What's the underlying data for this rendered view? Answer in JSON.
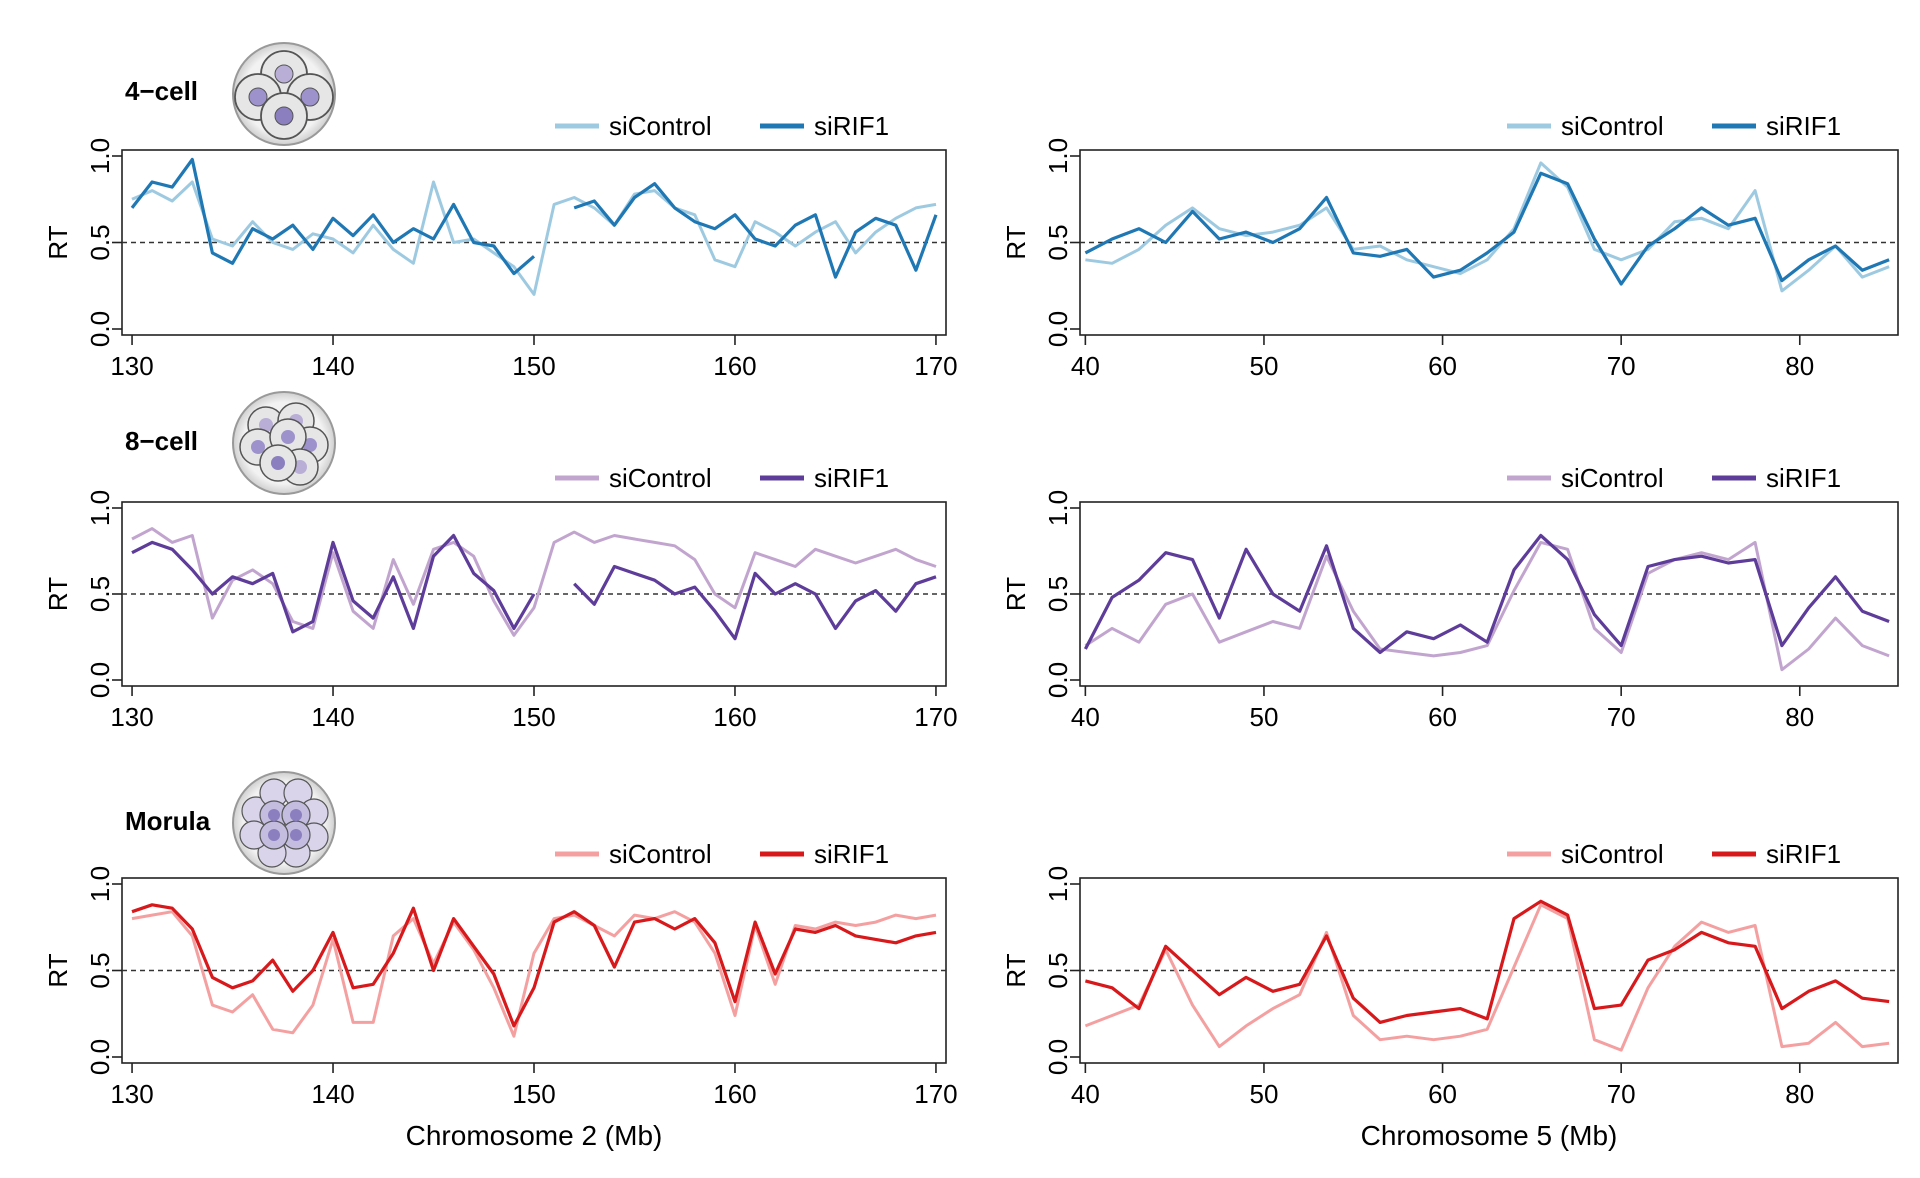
{
  "colors": {
    "4-cell": {
      "siControl": "#9ecae1",
      "siRIF1": "#1f78b4"
    },
    "8-cell": {
      "siControl": "#c2a5cf",
      "siRIF1": "#5e3c99"
    },
    "Morula": {
      "siControl": "#f4a0a0",
      "siRIF1": "#d7191c"
    }
  },
  "chart_data": [
    {
      "type": "line",
      "stage": "4-cell",
      "ylabel": "RT",
      "xlabel": "",
      "xlim": [
        129.5,
        170.5
      ],
      "ylim": [
        0,
        1
      ],
      "xticks": [
        130,
        140,
        150,
        160,
        170
      ],
      "yticks": [
        0.0,
        0.5,
        1.0
      ],
      "legend": "top-right",
      "reference_line": 0.5,
      "x": [
        130,
        131,
        132,
        133,
        134,
        135,
        136,
        137,
        138,
        139,
        140,
        141,
        142,
        143,
        144,
        145,
        146,
        147,
        148,
        149,
        150,
        151,
        152,
        153,
        154,
        155,
        156,
        157,
        158,
        159,
        160,
        161,
        162,
        163,
        164,
        165,
        166,
        167,
        168,
        169,
        170
      ],
      "series": [
        {
          "name": "siControl",
          "values": [
            0.75,
            0.8,
            0.74,
            0.85,
            0.52,
            0.48,
            0.62,
            0.5,
            0.46,
            0.55,
            0.52,
            0.44,
            0.6,
            0.46,
            0.38,
            0.85,
            0.5,
            0.52,
            0.44,
            0.36,
            0.2,
            0.72,
            0.76,
            0.7,
            0.6,
            0.78,
            0.8,
            0.7,
            0.66,
            0.4,
            0.36,
            0.62,
            0.56,
            0.48,
            0.56,
            0.62,
            0.44,
            0.56,
            0.64,
            0.7,
            0.72
          ]
        },
        {
          "name": "siRIF1",
          "values": [
            0.7,
            0.85,
            0.82,
            0.98,
            0.44,
            0.38,
            0.58,
            0.52,
            0.6,
            0.46,
            0.64,
            0.54,
            0.66,
            0.5,
            0.58,
            0.52,
            0.72,
            0.5,
            0.48,
            0.32,
            0.42,
            null,
            0.7,
            0.74,
            0.6,
            0.76,
            0.84,
            0.7,
            0.62,
            0.58,
            0.66,
            0.52,
            0.48,
            0.6,
            0.66,
            0.3,
            0.56,
            0.64,
            0.6,
            0.34,
            0.66
          ]
        }
      ]
    },
    {
      "type": "line",
      "stage": "4-cell",
      "ylabel": "RT",
      "xlabel": "",
      "xlim": [
        39.7,
        85.5
      ],
      "ylim": [
        0,
        1
      ],
      "xticks": [
        40,
        50,
        60,
        70,
        80
      ],
      "yticks": [
        0.0,
        0.5,
        1.0
      ],
      "legend": "top-right",
      "reference_line": 0.5,
      "x": [
        40,
        41.5,
        43,
        44.5,
        46,
        47.5,
        49,
        50.5,
        52,
        53.5,
        55,
        56.5,
        58,
        59.5,
        61,
        62.5,
        64,
        65.5,
        67,
        68.5,
        70,
        71.5,
        73,
        74.5,
        76,
        77.5,
        79,
        80.5,
        82,
        83.5,
        85
      ],
      "series": [
        {
          "name": "siControl",
          "values": [
            0.4,
            0.38,
            0.46,
            0.6,
            0.7,
            0.58,
            0.54,
            0.56,
            0.6,
            0.7,
            0.46,
            0.48,
            0.4,
            0.36,
            0.32,
            0.4,
            0.58,
            0.96,
            0.82,
            0.46,
            0.4,
            0.46,
            0.62,
            0.64,
            0.58,
            0.8,
            0.22,
            0.34,
            0.48,
            0.3,
            0.36
          ]
        },
        {
          "name": "siRIF1",
          "values": [
            0.44,
            0.52,
            0.58,
            0.5,
            0.68,
            0.52,
            0.56,
            0.5,
            0.58,
            0.76,
            0.44,
            0.42,
            0.46,
            0.3,
            0.34,
            0.44,
            0.56,
            0.9,
            0.84,
            0.52,
            0.26,
            0.48,
            0.58,
            0.7,
            0.6,
            0.64,
            0.28,
            0.4,
            0.48,
            0.34,
            0.4
          ]
        }
      ]
    },
    {
      "type": "line",
      "stage": "8-cell",
      "ylabel": "RT",
      "xlabel": "",
      "xlim": [
        129.5,
        170.5
      ],
      "ylim": [
        0,
        1
      ],
      "xticks": [
        130,
        140,
        150,
        160,
        170
      ],
      "yticks": [
        0.0,
        0.5,
        1.0
      ],
      "legend": "top-right",
      "reference_line": 0.5,
      "x": [
        130,
        131,
        132,
        133,
        134,
        135,
        136,
        137,
        138,
        139,
        140,
        141,
        142,
        143,
        144,
        145,
        146,
        147,
        148,
        149,
        150,
        151,
        152,
        153,
        154,
        155,
        156,
        157,
        158,
        159,
        160,
        161,
        162,
        163,
        164,
        165,
        166,
        167,
        168,
        169,
        170
      ],
      "series": [
        {
          "name": "siControl",
          "values": [
            0.82,
            0.88,
            0.8,
            0.84,
            0.36,
            0.58,
            0.64,
            0.56,
            0.34,
            0.3,
            0.74,
            0.4,
            0.3,
            0.7,
            0.44,
            0.76,
            0.8,
            0.72,
            0.46,
            0.26,
            0.42,
            0.8,
            0.86,
            0.8,
            0.84,
            0.82,
            0.8,
            0.78,
            0.7,
            0.5,
            0.42,
            0.74,
            0.7,
            0.66,
            0.76,
            0.72,
            0.68,
            0.72,
            0.76,
            0.7,
            0.66
          ]
        },
        {
          "name": "siRIF1",
          "values": [
            0.74,
            0.8,
            0.76,
            0.64,
            0.5,
            0.6,
            0.56,
            0.62,
            0.28,
            0.34,
            0.8,
            0.46,
            0.36,
            0.6,
            0.3,
            0.72,
            0.84,
            0.62,
            0.52,
            0.3,
            0.5,
            null,
            0.56,
            0.44,
            0.66,
            0.62,
            0.58,
            0.5,
            0.54,
            0.4,
            0.24,
            0.62,
            0.5,
            0.56,
            0.5,
            0.3,
            0.46,
            0.52,
            0.4,
            0.56,
            0.6
          ]
        }
      ]
    },
    {
      "type": "line",
      "stage": "8-cell",
      "ylabel": "RT",
      "xlabel": "",
      "xlim": [
        39.7,
        85.5
      ],
      "ylim": [
        0,
        1
      ],
      "xticks": [
        40,
        50,
        60,
        70,
        80
      ],
      "yticks": [
        0.0,
        0.5,
        1.0
      ],
      "legend": "top-right",
      "reference_line": 0.5,
      "x": [
        40,
        41.5,
        43,
        44.5,
        46,
        47.5,
        49,
        50.5,
        52,
        53.5,
        55,
        56.5,
        58,
        59.5,
        61,
        62.5,
        64,
        65.5,
        67,
        68.5,
        70,
        71.5,
        73,
        74.5,
        76,
        77.5,
        79,
        80.5,
        82,
        83.5,
        85
      ],
      "series": [
        {
          "name": "siControl",
          "values": [
            0.2,
            0.3,
            0.22,
            0.44,
            0.5,
            0.22,
            0.28,
            0.34,
            0.3,
            0.72,
            0.4,
            0.18,
            0.16,
            0.14,
            0.16,
            0.2,
            0.52,
            0.8,
            0.76,
            0.3,
            0.16,
            0.62,
            0.7,
            0.74,
            0.7,
            0.8,
            0.06,
            0.18,
            0.36,
            0.2,
            0.14
          ]
        },
        {
          "name": "siRIF1",
          "values": [
            0.18,
            0.48,
            0.58,
            0.74,
            0.7,
            0.36,
            0.76,
            0.5,
            0.4,
            0.78,
            0.3,
            0.16,
            0.28,
            0.24,
            0.32,
            0.22,
            0.64,
            0.84,
            0.7,
            0.38,
            0.2,
            0.66,
            0.7,
            0.72,
            0.68,
            0.7,
            0.2,
            0.42,
            0.6,
            0.4,
            0.34
          ]
        }
      ]
    },
    {
      "type": "line",
      "stage": "Morula",
      "ylabel": "RT",
      "xlabel": "Chromosome 2 (Mb)",
      "xlim": [
        129.5,
        170.5
      ],
      "ylim": [
        0,
        1
      ],
      "xticks": [
        130,
        140,
        150,
        160,
        170
      ],
      "yticks": [
        0.0,
        0.5,
        1.0
      ],
      "legend": "top-right",
      "reference_line": 0.5,
      "x": [
        130,
        131,
        132,
        133,
        134,
        135,
        136,
        137,
        138,
        139,
        140,
        141,
        142,
        143,
        144,
        145,
        146,
        147,
        148,
        149,
        150,
        151,
        152,
        153,
        154,
        155,
        156,
        157,
        158,
        159,
        160,
        161,
        162,
        163,
        164,
        165,
        166,
        167,
        168,
        169,
        170
      ],
      "series": [
        {
          "name": "siControl",
          "values": [
            0.8,
            0.82,
            0.84,
            0.7,
            0.3,
            0.26,
            0.36,
            0.16,
            0.14,
            0.3,
            0.68,
            0.2,
            0.2,
            0.7,
            0.8,
            0.54,
            0.78,
            0.62,
            0.4,
            0.12,
            0.6,
            0.8,
            0.82,
            0.76,
            0.7,
            0.82,
            0.8,
            0.84,
            0.78,
            0.6,
            0.24,
            0.76,
            0.42,
            0.76,
            0.74,
            0.78,
            0.76,
            0.78,
            0.82,
            0.8,
            0.82
          ]
        },
        {
          "name": "siRIF1",
          "values": [
            0.84,
            0.88,
            0.86,
            0.74,
            0.46,
            0.4,
            0.44,
            0.56,
            0.38,
            0.5,
            0.72,
            0.4,
            0.42,
            0.6,
            0.86,
            0.5,
            0.8,
            0.64,
            0.48,
            0.18,
            0.4,
            0.78,
            0.84,
            0.76,
            0.52,
            0.78,
            0.8,
            0.74,
            0.8,
            0.66,
            0.32,
            0.78,
            0.48,
            0.74,
            0.72,
            0.76,
            0.7,
            0.68,
            0.66,
            0.7,
            0.72
          ]
        }
      ]
    },
    {
      "type": "line",
      "stage": "Morula",
      "ylabel": "RT",
      "xlabel": "Chromosome 5 (Mb)",
      "xlim": [
        39.7,
        85.5
      ],
      "ylim": [
        0,
        1
      ],
      "xticks": [
        40,
        50,
        60,
        70,
        80
      ],
      "yticks": [
        0.0,
        0.5,
        1.0
      ],
      "legend": "top-right",
      "reference_line": 0.5,
      "x": [
        40,
        41.5,
        43,
        44.5,
        46,
        47.5,
        49,
        50.5,
        52,
        53.5,
        55,
        56.5,
        58,
        59.5,
        61,
        62.5,
        64,
        65.5,
        67,
        68.5,
        70,
        71.5,
        73,
        74.5,
        76,
        77.5,
        79,
        80.5,
        82,
        83.5,
        85
      ],
      "series": [
        {
          "name": "siControl",
          "values": [
            0.18,
            0.24,
            0.3,
            0.62,
            0.3,
            0.06,
            0.18,
            0.28,
            0.36,
            0.72,
            0.24,
            0.1,
            0.12,
            0.1,
            0.12,
            0.16,
            0.52,
            0.88,
            0.8,
            0.1,
            0.04,
            0.4,
            0.64,
            0.78,
            0.72,
            0.76,
            0.06,
            0.08,
            0.2,
            0.06,
            0.08
          ]
        },
        {
          "name": "siRIF1",
          "values": [
            0.44,
            0.4,
            0.28,
            0.64,
            0.5,
            0.36,
            0.46,
            0.38,
            0.42,
            0.7,
            0.34,
            0.2,
            0.24,
            0.26,
            0.28,
            0.22,
            0.8,
            0.9,
            0.82,
            0.28,
            0.3,
            0.56,
            0.62,
            0.72,
            0.66,
            0.64,
            0.28,
            0.38,
            0.44,
            0.34,
            0.32
          ]
        }
      ]
    }
  ],
  "stage_labels": [
    "4−cell",
    "8−cell",
    "Morula"
  ]
}
